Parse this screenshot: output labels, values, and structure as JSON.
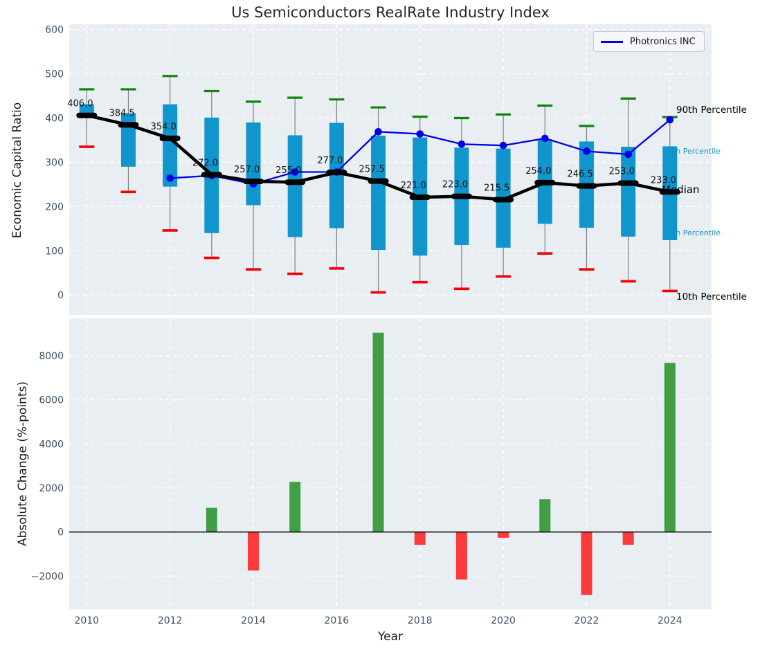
{
  "figure": {
    "title": "Us Semiconductors RealRate Industry Index",
    "xlabel": "Year"
  },
  "chart_data": [
    {
      "type": "boxplot+line",
      "title": "Us Semiconductors RealRate Industry Index",
      "ylabel": "Economic Capital Ratio",
      "ylim": [
        -45,
        612
      ],
      "yticks": [
        0,
        100,
        200,
        300,
        400,
        500,
        600
      ],
      "xlim": [
        2009.58,
        2025.0
      ],
      "xticks": [
        2010,
        2012,
        2014,
        2016,
        2018,
        2020,
        2022,
        2024
      ],
      "grid": true,
      "legend": {
        "label": "Photronics INC",
        "position": "upper right"
      },
      "years": [
        2010,
        2011,
        2012,
        2013,
        2014,
        2015,
        2016,
        2017,
        2018,
        2019,
        2020,
        2021,
        2022,
        2023,
        2024
      ],
      "series": {
        "median": [
          406.0,
          384.5,
          354.0,
          272.0,
          257.0,
          255.0,
          277.0,
          257.5,
          221.0,
          223.0,
          215.5,
          254.0,
          246.5,
          253.0,
          233.0
        ],
        "q1": [
          400,
          290,
          245,
          140,
          203,
          131,
          151,
          102,
          89,
          113,
          107,
          161,
          152,
          132,
          124
        ],
        "q3": [
          431,
          411,
          431,
          401,
          390,
          361,
          389,
          360,
          356,
          333,
          331,
          352,
          347,
          335,
          336
        ],
        "p10": [
          335,
          233,
          146,
          84,
          58,
          48,
          60,
          6,
          29,
          14,
          42,
          94,
          58,
          31,
          9
        ],
        "p90": [
          465,
          465,
          495,
          461,
          437,
          446,
          442,
          424,
          403,
          400,
          408,
          428,
          382,
          444,
          402
        ],
        "photronics": [
          null,
          null,
          264,
          270,
          251,
          278,
          278,
          369,
          364,
          341,
          338,
          354,
          325,
          318,
          396
        ]
      },
      "right_annotations": [
        "90th Percentile",
        "75th Percentile",
        "Median",
        "25th Percentile",
        "10th Percentile"
      ],
      "colors": {
        "box": "#1095cc",
        "whisker": "#7f7f7f",
        "cap_high": "#0e840e",
        "cap_low": "#f50000",
        "median_line": "#000000",
        "company_line": "#0000e8",
        "panel_bg": "#e9eef2",
        "tick_label": "#3d4f63"
      }
    },
    {
      "type": "bar",
      "ylabel": "Absolute Change (%-points)",
      "xlabel": "Year",
      "ylim": [
        -3500,
        9700
      ],
      "yticks": [
        -2000,
        0,
        2000,
        4000,
        6000,
        8000
      ],
      "grid": true,
      "categories": [
        2010,
        2011,
        2012,
        2013,
        2014,
        2015,
        2016,
        2017,
        2018,
        2019,
        2020,
        2021,
        2022,
        2023,
        2024
      ],
      "values": [
        null,
        null,
        null,
        1100,
        -1750,
        2280,
        null,
        9050,
        -580,
        -2160,
        -260,
        1490,
        -2860,
        -580,
        7680
      ],
      "colors": {
        "positive": "#3f9f42",
        "negative": "#fb3a3a",
        "zero_line": "#000000"
      }
    }
  ]
}
